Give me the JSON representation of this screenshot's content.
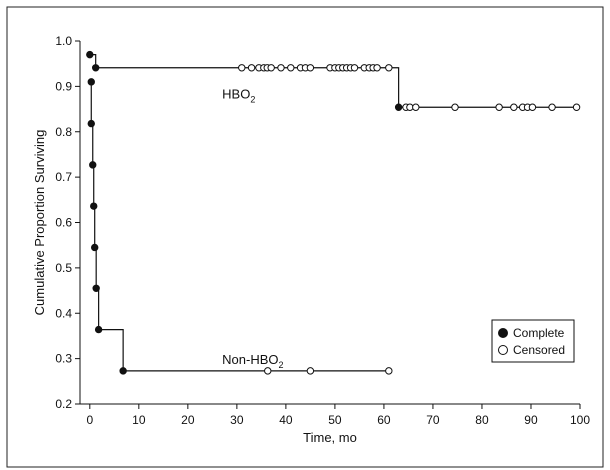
{
  "chart_data": {
    "type": "line",
    "title": "",
    "xlabel": "Time, mo",
    "ylabel": "Cumulative Proportion Surviving",
    "xlim": [
      -2,
      100
    ],
    "ylim": [
      0.2,
      1.0
    ],
    "xticks": [
      0,
      10,
      20,
      30,
      40,
      50,
      60,
      70,
      80,
      90,
      100
    ],
    "yticks": [
      0.2,
      0.3,
      0.4,
      0.5,
      0.6,
      0.7,
      0.8,
      0.9,
      1.0
    ],
    "xtick_labels": [
      "0",
      "10",
      "20",
      "30",
      "40",
      "50",
      "60",
      "70",
      "80",
      "90",
      "100"
    ],
    "ytick_labels": [
      "0.2",
      "0.3",
      "0.4",
      "0.5",
      "0.6",
      "0.7",
      "0.8",
      "0.9",
      "1.0"
    ],
    "grid": false,
    "legend": {
      "position": "bottom-right",
      "entries": [
        {
          "label": "Complete",
          "marker": "filled-circle"
        },
        {
          "label": "Censored",
          "marker": "open-circle"
        }
      ]
    },
    "series": [
      {
        "name": "HBO",
        "name_subscript": "2",
        "label_at": {
          "x": 27,
          "y": 0.873
        },
        "step": [
          [
            0,
            0.97
          ],
          [
            1.2,
            0.97
          ],
          [
            1.2,
            0.941
          ],
          [
            63,
            0.941
          ],
          [
            63,
            0.854
          ],
          [
            99,
            0.854
          ]
        ],
        "complete": [
          [
            0,
            0.97
          ],
          [
            1.2,
            0.941
          ],
          [
            63,
            0.854
          ]
        ],
        "censored": [
          [
            31,
            0.941
          ],
          [
            33,
            0.941
          ],
          [
            34.5,
            0.941
          ],
          [
            35.5,
            0.941
          ],
          [
            36.2,
            0.941
          ],
          [
            37,
            0.941
          ],
          [
            39,
            0.941
          ],
          [
            41,
            0.941
          ],
          [
            43,
            0.941
          ],
          [
            44,
            0.941
          ],
          [
            45,
            0.941
          ],
          [
            49,
            0.941
          ],
          [
            50,
            0.941
          ],
          [
            50.8,
            0.941
          ],
          [
            51.6,
            0.941
          ],
          [
            52.4,
            0.941
          ],
          [
            53.2,
            0.941
          ],
          [
            54,
            0.941
          ],
          [
            56,
            0.941
          ],
          [
            57,
            0.941
          ],
          [
            57.8,
            0.941
          ],
          [
            58.6,
            0.941
          ],
          [
            61,
            0.941
          ],
          [
            64.5,
            0.854
          ],
          [
            65.3,
            0.854
          ],
          [
            66.5,
            0.854
          ],
          [
            74.5,
            0.854
          ],
          [
            83.5,
            0.854
          ],
          [
            86.5,
            0.854
          ],
          [
            88.3,
            0.854
          ],
          [
            89.3,
            0.854
          ],
          [
            90.3,
            0.854
          ],
          [
            94.3,
            0.854
          ],
          [
            99.3,
            0.854
          ]
        ]
      },
      {
        "name": "Non-HBO",
        "name_subscript": "2",
        "label_at": {
          "x": 27,
          "y": 0.288
        },
        "step": [
          [
            0.3,
            0.91
          ],
          [
            0.3,
            0.818
          ],
          [
            0.6,
            0.818
          ],
          [
            0.6,
            0.727
          ],
          [
            0.8,
            0.727
          ],
          [
            0.8,
            0.636
          ],
          [
            1.0,
            0.636
          ],
          [
            1.0,
            0.545
          ],
          [
            1.3,
            0.545
          ],
          [
            1.3,
            0.455
          ],
          [
            1.8,
            0.455
          ],
          [
            1.8,
            0.364
          ],
          [
            6.8,
            0.364
          ],
          [
            6.8,
            0.273
          ],
          [
            61,
            0.273
          ]
        ],
        "complete": [
          [
            0.3,
            0.91
          ],
          [
            0.3,
            0.818
          ],
          [
            0.6,
            0.727
          ],
          [
            0.8,
            0.636
          ],
          [
            1.0,
            0.545
          ],
          [
            1.3,
            0.455
          ],
          [
            1.8,
            0.364
          ],
          [
            6.8,
            0.273
          ]
        ],
        "censored": [
          [
            36.3,
            0.273
          ],
          [
            45,
            0.273
          ],
          [
            61,
            0.273
          ]
        ]
      }
    ]
  }
}
